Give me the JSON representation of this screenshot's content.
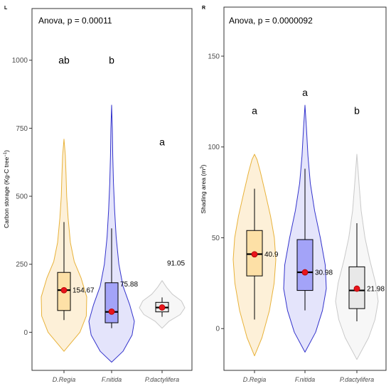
{
  "figure": {
    "panels": [
      {
        "tag": "L",
        "anova_label": "Anova, p = 0.00011"
      },
      {
        "tag": "R",
        "anova_label": "Anova, p = 0.0000092"
      }
    ]
  },
  "chart_data": [
    {
      "type": "violin",
      "panel_tag": "L",
      "title": "Anova, p = 0.00011",
      "xlabel": "",
      "ylabel": "Carbon storage (Kg-C tree⁻¹)",
      "ylim": [
        -140,
        1190
      ],
      "yticks": [
        0,
        250,
        500,
        750,
        1000
      ],
      "ytick_labels": [
        "0",
        "250",
        "500",
        "750",
        "1000"
      ],
      "grid": false,
      "categories": [
        "D.Regia",
        "F.nitida",
        "P.dactylifera"
      ],
      "colors": {
        "D.Regia": {
          "line": "#e8b23a",
          "fill": "#fdf0d8",
          "box": "#fde0a6"
        },
        "F.nitida": {
          "line": "#3333cc",
          "fill": "#e4e4fb",
          "box": "#a3a3f8"
        },
        "P.dactylifera": {
          "line": "#c9c9c9",
          "fill": "#f7f7f7",
          "box": "#e8e8e8"
        }
      },
      "violins": [
        {
          "category": "D.Regia",
          "min": -70,
          "max": 710,
          "profile": [
            [
              -70,
              0.0
            ],
            [
              -40,
              0.3
            ],
            [
              0,
              0.7
            ],
            [
              60,
              0.98
            ],
            [
              130,
              1.0
            ],
            [
              200,
              0.75
            ],
            [
              260,
              0.45
            ],
            [
              330,
              0.28
            ],
            [
              420,
              0.18
            ],
            [
              500,
              0.12
            ],
            [
              580,
              0.09
            ],
            [
              650,
              0.06
            ],
            [
              710,
              0.0
            ]
          ]
        },
        {
          "category": "F.nitida",
          "min": -110,
          "max": 835,
          "profile": [
            [
              -110,
              0.0
            ],
            [
              -70,
              0.5
            ],
            [
              -10,
              0.9
            ],
            [
              40,
              1.0
            ],
            [
              100,
              0.8
            ],
            [
              170,
              0.5
            ],
            [
              250,
              0.32
            ],
            [
              350,
              0.2
            ],
            [
              450,
              0.13
            ],
            [
              550,
              0.08
            ],
            [
              650,
              0.05
            ],
            [
              750,
              0.03
            ],
            [
              835,
              0.0
            ]
          ]
        },
        {
          "category": "P.dactylifera",
          "min": 15,
          "max": 190,
          "profile": [
            [
              15,
              0.0
            ],
            [
              40,
              0.3
            ],
            [
              65,
              0.8
            ],
            [
              90,
              1.0
            ],
            [
              115,
              0.85
            ],
            [
              140,
              0.45
            ],
            [
              165,
              0.2
            ],
            [
              190,
              0.0
            ]
          ]
        }
      ],
      "boxes": [
        {
          "category": "D.Regia",
          "whisker_low": 45,
          "q1": 80,
          "median": 155,
          "q3": 220,
          "whisker_high": 405,
          "mean": 154.67
        },
        {
          "category": "F.nitida",
          "whisker_low": 15,
          "q1": 35,
          "median": 75,
          "q3": 182,
          "whisker_high": 382,
          "mean": 75.88
        },
        {
          "category": "P.dactylifera",
          "whisker_low": 57,
          "q1": 75,
          "median": 91,
          "q3": 110,
          "whisker_high": 128,
          "mean": 91.05
        }
      ],
      "mean_labels": [
        "154.67",
        "75.88",
        "91.05"
      ],
      "mean_label_y": [
        154.67,
        178,
        255
      ],
      "significance_letters": [
        {
          "category": "D.Regia",
          "letter": "ab",
          "y": 1000
        },
        {
          "category": "F.nitida",
          "letter": "b",
          "y": 1000
        },
        {
          "category": "P.dactylifera",
          "letter": "a",
          "y": 700
        }
      ]
    },
    {
      "type": "violin",
      "panel_tag": "R",
      "title": "Anova, p = 0.0000092",
      "xlabel": "",
      "ylabel": "Shading area (m²)",
      "ylim": [
        -23,
        177
      ],
      "yticks": [
        0,
        50,
        100,
        150
      ],
      "ytick_labels": [
        "0",
        "50",
        "100",
        "150"
      ],
      "grid": false,
      "categories": [
        "D.Regia",
        "F.nitida",
        "P.dactylifera"
      ],
      "colors": {
        "D.Regia": {
          "line": "#e8b23a",
          "fill": "#fdf0d8",
          "box": "#fde0a6"
        },
        "F.nitida": {
          "line": "#3333cc",
          "fill": "#e4e4fb",
          "box": "#a3a3f8"
        },
        "P.dactylifera": {
          "line": "#c9c9c9",
          "fill": "#f7f7f7",
          "box": "#e8e8e8"
        }
      },
      "violins": [
        {
          "category": "D.Regia",
          "min": -15,
          "max": 96,
          "profile": [
            [
              -15,
              0.0
            ],
            [
              -5,
              0.35
            ],
            [
              10,
              0.7
            ],
            [
              25,
              0.92
            ],
            [
              38,
              1.0
            ],
            [
              50,
              0.93
            ],
            [
              62,
              0.75
            ],
            [
              75,
              0.5
            ],
            [
              86,
              0.28
            ],
            [
              93,
              0.12
            ],
            [
              96,
              0.0
            ]
          ]
        },
        {
          "category": "F.nitida",
          "min": -13,
          "max": 123,
          "profile": [
            [
              -13,
              0.0
            ],
            [
              -2,
              0.5
            ],
            [
              10,
              0.82
            ],
            [
              22,
              1.0
            ],
            [
              35,
              0.95
            ],
            [
              50,
              0.72
            ],
            [
              65,
              0.45
            ],
            [
              80,
              0.25
            ],
            [
              95,
              0.14
            ],
            [
              110,
              0.07
            ],
            [
              123,
              0.0
            ]
          ]
        },
        {
          "category": "P.dactylifera",
          "min": -17,
          "max": 96,
          "profile": [
            [
              -17,
              0.0
            ],
            [
              -5,
              0.55
            ],
            [
              5,
              0.85
            ],
            [
              15,
              1.0
            ],
            [
              25,
              0.88
            ],
            [
              38,
              0.6
            ],
            [
              50,
              0.38
            ],
            [
              65,
              0.2
            ],
            [
              80,
              0.1
            ],
            [
              96,
              0.0
            ]
          ]
        }
      ],
      "boxes": [
        {
          "category": "D.Regia",
          "whisker_low": 5,
          "q1": 29,
          "median": 41,
          "q3": 54,
          "whisker_high": 77,
          "mean": 40.9
        },
        {
          "category": "F.nitida",
          "whisker_low": 10,
          "q1": 21,
          "median": 31,
          "q3": 49,
          "whisker_high": 88,
          "mean": 30.98
        },
        {
          "category": "P.dactylifera",
          "whisker_low": 4,
          "q1": 11,
          "median": 21,
          "q3": 34,
          "whisker_high": 58,
          "mean": 21.98
        }
      ],
      "mean_labels": [
        "40.9",
        "30.98",
        "21.98"
      ],
      "mean_label_y": [
        40.9,
        30.98,
        21.98
      ],
      "significance_letters": [
        {
          "category": "D.Regia",
          "letter": "a",
          "y": 120
        },
        {
          "category": "F.nitida",
          "letter": "a",
          "y": 130
        },
        {
          "category": "P.dactylifera",
          "letter": "b",
          "y": 120
        }
      ]
    }
  ]
}
